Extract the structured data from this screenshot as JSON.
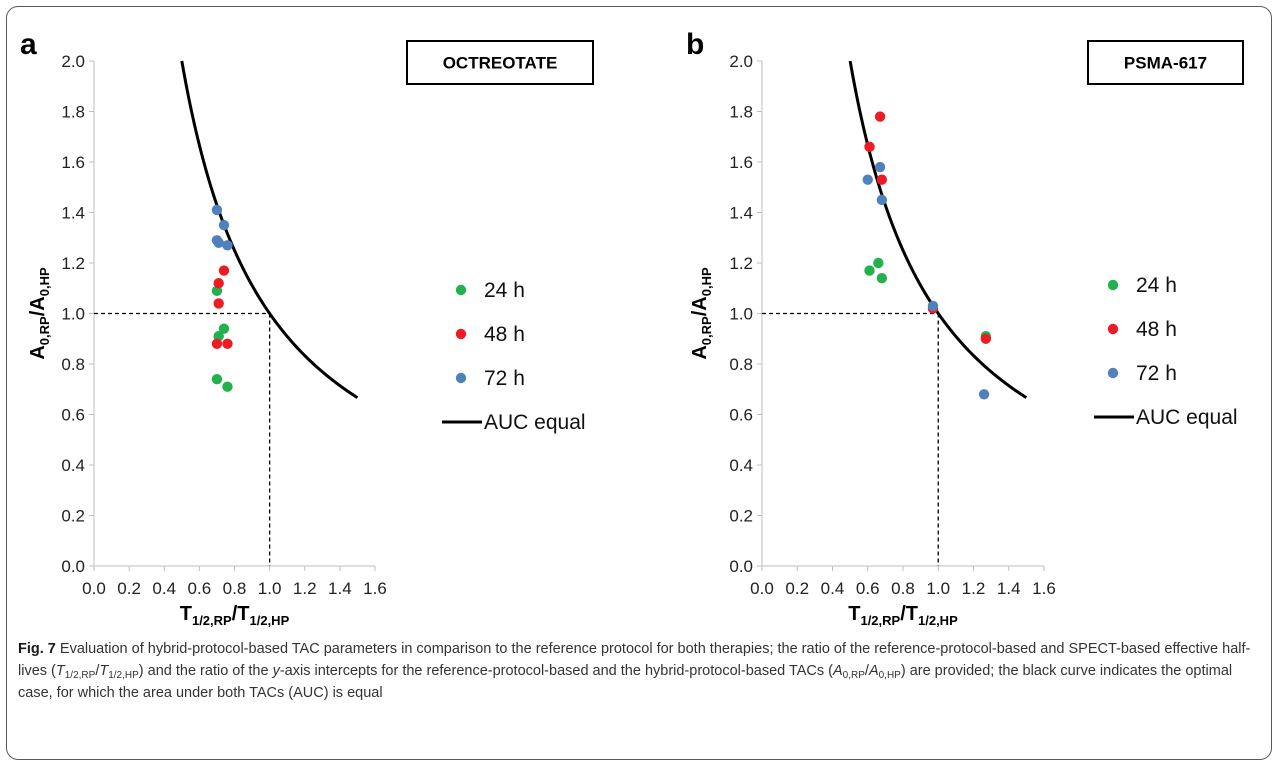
{
  "charts": [
    {
      "panel": "a",
      "box_label": "OCTREOTATE",
      "chart_data": {
        "type": "scatter",
        "xlim": [
          0.0,
          1.6
        ],
        "ylim": [
          0.0,
          2.0
        ],
        "x_ticks": [
          "0.0",
          "0.2",
          "0.4",
          "0.6",
          "0.8",
          "1.0",
          "1.2",
          "1.4",
          "1.6"
        ],
        "y_ticks": [
          "0.0",
          "0.2",
          "0.4",
          "0.6",
          "0.8",
          "1.0",
          "1.2",
          "1.4",
          "1.6",
          "1.8",
          "2.0"
        ],
        "xlabel_main": "T",
        "xlabel_num_sub": "1/2,RP",
        "xlabel_den_sub": "1/2,HP",
        "ylabel_main": "A",
        "ylabel_num_sub": "0,RP",
        "ylabel_den_sub": "0,HP",
        "grid": false,
        "legend_position": "right",
        "reference_lines": {
          "x": 1.0,
          "y": 1.0,
          "style": "dashed"
        },
        "series": [
          {
            "name": "24 h",
            "color": "#22b14c",
            "points": [
              [
                0.7,
                1.09
              ],
              [
                0.71,
                0.91
              ],
              [
                0.74,
                0.94
              ],
              [
                0.7,
                0.74
              ],
              [
                0.76,
                0.71
              ]
            ]
          },
          {
            "name": "48 h",
            "color": "#ed1c24",
            "points": [
              [
                0.71,
                1.12
              ],
              [
                0.71,
                1.04
              ],
              [
                0.74,
                1.17
              ],
              [
                0.7,
                0.88
              ],
              [
                0.76,
                0.88
              ]
            ]
          },
          {
            "name": "72 h",
            "color": "#4f81bd",
            "points": [
              [
                0.7,
                1.41
              ],
              [
                0.74,
                1.35
              ],
              [
                0.7,
                1.29
              ],
              [
                0.71,
                1.28
              ],
              [
                0.76,
                1.27
              ]
            ]
          }
        ],
        "curve": {
          "name": "AUC equal",
          "color": "#000000",
          "function": "1/x",
          "x_range": [
            0.5,
            1.5
          ]
        }
      }
    },
    {
      "panel": "b",
      "box_label": "PSMA-617",
      "chart_data": {
        "type": "scatter",
        "xlim": [
          0.0,
          1.6
        ],
        "ylim": [
          0.0,
          2.0
        ],
        "x_ticks": [
          "0.0",
          "0.2",
          "0.4",
          "0.6",
          "0.8",
          "1.0",
          "1.2",
          "1.4",
          "1.6"
        ],
        "y_ticks": [
          "0.0",
          "0.2",
          "0.4",
          "0.6",
          "0.8",
          "1.0",
          "1.2",
          "1.4",
          "1.6",
          "1.8",
          "2.0"
        ],
        "xlabel_main": "T",
        "xlabel_num_sub": "1/2,RP",
        "xlabel_den_sub": "1/2,HP",
        "ylabel_main": "A",
        "ylabel_num_sub": "0,RP",
        "ylabel_den_sub": "0,HP",
        "grid": false,
        "legend_position": "right",
        "reference_lines": {
          "x": 1.0,
          "y": 1.0,
          "style": "dashed"
        },
        "series": [
          {
            "name": "24 h",
            "color": "#22b14c",
            "points": [
              [
                0.61,
                1.17
              ],
              [
                0.66,
                1.2
              ],
              [
                0.68,
                1.14
              ],
              [
                1.27,
                0.91
              ]
            ]
          },
          {
            "name": "48 h",
            "color": "#ed1c24",
            "points": [
              [
                0.61,
                1.66
              ],
              [
                0.67,
                1.78
              ],
              [
                0.68,
                1.53
              ],
              [
                0.97,
                1.02
              ],
              [
                1.27,
                0.9
              ]
            ]
          },
          {
            "name": "72 h",
            "color": "#4f81bd",
            "points": [
              [
                0.6,
                1.53
              ],
              [
                0.67,
                1.58
              ],
              [
                0.68,
                1.45
              ],
              [
                0.97,
                1.03
              ],
              [
                1.26,
                0.68
              ]
            ]
          }
        ],
        "curve": {
          "name": "AUC equal",
          "color": "#000000",
          "function": "1/x",
          "x_range": [
            0.5,
            1.5
          ]
        }
      }
    }
  ],
  "caption": {
    "fig_label": "Fig. 7",
    "text": " Evaluation of hybrid-protocol-based TAC parameters in comparison to the reference protocol for both therapies; the ratio of the reference-protocol-based and SPECT-based effective half-lives (",
    "ratio1_a": "T",
    "ratio1_a_sub": "1/2,RP",
    "ratio1_b": "T",
    "ratio1_b_sub": "1/2,HP",
    "text2": ") and the ratio of the ",
    "yaxis_word": "y",
    "text3": "-axis intercepts for the reference-protocol-based and the hybrid-protocol-based TACs (",
    "ratio2_a": "A",
    "ratio2_a_sub": "0,RP",
    "ratio2_b": "A",
    "ratio2_b_sub": "0,HP",
    "text4": ") are provided; the black curve indicates the optimal case, for which the area under both TACs (AUC) is equal"
  }
}
